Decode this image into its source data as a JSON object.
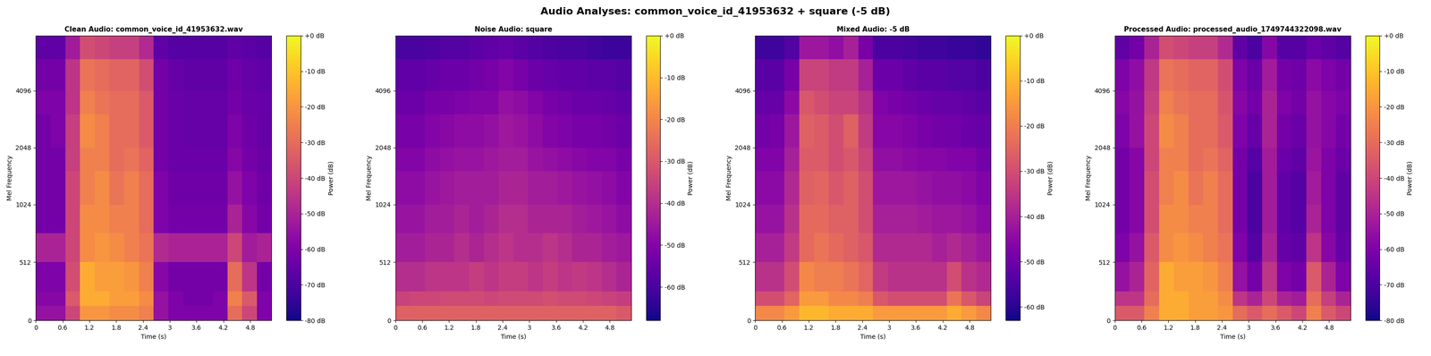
{
  "title": "Audio Analyses: common_voice_id_41953632 + square (-5 dB)",
  "chart_data": [
    {
      "type": "heatmap",
      "title": "Clean Audio: common_voice_id_41953632.wav",
      "x_label": "Time (s)",
      "y_label": "Mel Frequency",
      "xlim": [
        0,
        5.28
      ],
      "xticks": [
        0,
        0.6,
        1.2,
        1.8,
        2.4,
        3,
        3.6,
        4.2,
        4.8
      ],
      "ylim": [
        0,
        8000
      ],
      "yticks": [
        0,
        512,
        1024,
        2048,
        4096
      ],
      "x_edges": [
        0,
        0.33,
        0.66,
        0.99,
        1.32,
        1.65,
        1.98,
        2.31,
        2.64,
        2.97,
        3.3,
        3.63,
        3.96,
        4.29,
        4.62,
        4.95,
        5.28
      ],
      "y_edges": [
        0,
        128,
        256,
        512,
        768,
        1024,
        1536,
        2048,
        3072,
        4096,
        6000,
        8000
      ],
      "cells": [
        [
          -55,
          -55,
          -40,
          -20,
          -20,
          -22,
          -22,
          -25,
          -55,
          -60,
          -60,
          -60,
          -60,
          -30,
          -40,
          -60
        ],
        [
          -58,
          -58,
          -35,
          -15,
          -15,
          -18,
          -18,
          -22,
          -55,
          -60,
          -62,
          -62,
          -60,
          -25,
          -35,
          -60
        ],
        [
          -60,
          -60,
          -38,
          -15,
          -18,
          -18,
          -20,
          -25,
          -58,
          -62,
          -62,
          -62,
          -62,
          -30,
          -45,
          -62
        ],
        [
          -50,
          -50,
          -40,
          -22,
          -20,
          -22,
          -25,
          -28,
          -48,
          -50,
          -50,
          -50,
          -50,
          -40,
          -52,
          -50
        ],
        [
          -62,
          -62,
          -40,
          -22,
          -22,
          -25,
          -25,
          -30,
          -60,
          -62,
          -62,
          -62,
          -62,
          -50,
          -58,
          -62
        ],
        [
          -62,
          -62,
          -40,
          -25,
          -22,
          -28,
          -25,
          -30,
          -60,
          -63,
          -63,
          -63,
          -63,
          -55,
          -60,
          -63
        ],
        [
          -62,
          -62,
          -42,
          -25,
          -25,
          -30,
          -28,
          -32,
          -62,
          -64,
          -64,
          -64,
          -64,
          -58,
          -62,
          -64
        ],
        [
          -62,
          -60,
          -42,
          -22,
          -25,
          -30,
          -30,
          -35,
          -62,
          -64,
          -65,
          -65,
          -65,
          -60,
          -63,
          -65
        ],
        [
          -60,
          -60,
          -45,
          -25,
          -28,
          -30,
          -30,
          -35,
          -62,
          -64,
          -65,
          -65,
          -65,
          -62,
          -64,
          -65
        ],
        [
          -62,
          -62,
          -45,
          -28,
          -30,
          -32,
          -32,
          -38,
          -62,
          -65,
          -66,
          -66,
          -66,
          -63,
          -65,
          -66
        ],
        [
          -66,
          -66,
          -52,
          -38,
          -40,
          -42,
          -42,
          -48,
          -66,
          -68,
          -68,
          -68,
          -68,
          -66,
          -67,
          -68
        ]
      ],
      "colorbar_label": "Power (dB)",
      "colorbar_range": [
        -80,
        0
      ],
      "colorbar_ticks": [
        {
          "value": -80,
          "label": "-80 dB"
        },
        {
          "value": -70,
          "label": "-70 dB"
        },
        {
          "value": -60,
          "label": "-60 dB"
        },
        {
          "value": -50,
          "label": "-50 dB"
        },
        {
          "value": -40,
          "label": "-40 dB"
        },
        {
          "value": -30,
          "label": "-30 dB"
        },
        {
          "value": -20,
          "label": "-20 dB"
        },
        {
          "value": -10,
          "label": "-10 dB"
        },
        {
          "value": 0,
          "label": "+0 dB"
        }
      ]
    },
    {
      "type": "heatmap",
      "title": "Noise Audio: square",
      "x_label": "Time (s)",
      "y_label": "Mel Frequency",
      "xlim": [
        0,
        5.28
      ],
      "xticks": [
        0,
        0.6,
        1.2,
        1.8,
        2.4,
        3,
        3.6,
        4.2,
        4.8
      ],
      "ylim": [
        0,
        8000
      ],
      "yticks": [
        0,
        512,
        1024,
        2048,
        4096
      ],
      "x_edges": [
        0,
        0.33,
        0.66,
        0.99,
        1.32,
        1.65,
        1.98,
        2.31,
        2.64,
        2.97,
        3.3,
        3.63,
        3.96,
        4.29,
        4.62,
        4.95,
        5.28
      ],
      "y_edges": [
        0,
        128,
        256,
        512,
        768,
        1024,
        1536,
        2048,
        3072,
        4096,
        6000,
        8000
      ],
      "cells": [
        [
          -28,
          -28,
          -28,
          -28,
          -28,
          -28,
          -28,
          -28,
          -28,
          -28,
          -28,
          -28,
          -28,
          -28,
          -28,
          -30
        ],
        [
          -35,
          -34,
          -34,
          -33,
          -33,
          -33,
          -34,
          -33,
          -33,
          -33,
          -32,
          -33,
          -33,
          -34,
          -35,
          -36
        ],
        [
          -40,
          -40,
          -38,
          -38,
          -38,
          -36,
          -38,
          -36,
          -36,
          -38,
          -36,
          -38,
          -37,
          -38,
          -40,
          -42
        ],
        [
          -44,
          -44,
          -42,
          -42,
          -40,
          -42,
          -40,
          -38,
          -40,
          -40,
          -38,
          -40,
          -42,
          -42,
          -44,
          -45
        ],
        [
          -46,
          -46,
          -44,
          -44,
          -42,
          -44,
          -42,
          -40,
          -40,
          -42,
          -42,
          -42,
          -44,
          -45,
          -46,
          -48
        ],
        [
          -48,
          -48,
          -46,
          -45,
          -44,
          -44,
          -44,
          -42,
          -42,
          -44,
          -44,
          -45,
          -46,
          -47,
          -48,
          -50
        ],
        [
          -50,
          -50,
          -48,
          -47,
          -46,
          -46,
          -45,
          -44,
          -44,
          -46,
          -47,
          -48,
          -49,
          -50,
          -50,
          -52
        ],
        [
          -52,
          -52,
          -50,
          -49,
          -48,
          -48,
          -47,
          -45,
          -46,
          -48,
          -50,
          -51,
          -52,
          -52,
          -53,
          -54
        ],
        [
          -54,
          -54,
          -52,
          -52,
          -51,
          -50,
          -50,
          -47,
          -48,
          -50,
          -52,
          -53,
          -54,
          -54,
          -55,
          -56
        ],
        [
          -56,
          -56,
          -55,
          -54,
          -54,
          -53,
          -52,
          -50,
          -52,
          -54,
          -55,
          -56,
          -56,
          -57,
          -57,
          -58
        ],
        [
          -60,
          -60,
          -59,
          -58,
          -58,
          -57,
          -56,
          -55,
          -57,
          -58,
          -59,
          -60,
          -60,
          -61,
          -62,
          -62
        ]
      ],
      "colorbar_label": "Power (dB)",
      "colorbar_range": [
        -68,
        0
      ],
      "colorbar_ticks": [
        {
          "value": -60,
          "label": "-60 dB"
        },
        {
          "value": -50,
          "label": "-50 dB"
        },
        {
          "value": -40,
          "label": "-40 dB"
        },
        {
          "value": -30,
          "label": "-30 dB"
        },
        {
          "value": -20,
          "label": "-20 dB"
        },
        {
          "value": -10,
          "label": "-10 dB"
        },
        {
          "value": 0,
          "label": "+0 dB"
        }
      ]
    },
    {
      "type": "heatmap",
      "title": "Mixed Audio: -5 dB",
      "x_label": "Time (s)",
      "y_label": "Mel Frequency",
      "xlim": [
        0,
        5.28
      ],
      "xticks": [
        0,
        0.6,
        1.2,
        1.8,
        2.4,
        3,
        3.6,
        4.2,
        4.8
      ],
      "ylim": [
        0,
        8000
      ],
      "yticks": [
        0,
        512,
        1024,
        2048,
        4096
      ],
      "x_edges": [
        0,
        0.33,
        0.66,
        0.99,
        1.32,
        1.65,
        1.98,
        2.31,
        2.64,
        2.97,
        3.3,
        3.63,
        3.96,
        4.29,
        4.62,
        4.95,
        5.28
      ],
      "y_edges": [
        0,
        128,
        256,
        512,
        768,
        1024,
        1536,
        2048,
        3072,
        4096,
        6000,
        8000
      ],
      "cells": [
        [
          -18,
          -18,
          -15,
          -10,
          -10,
          -12,
          -12,
          -12,
          -15,
          -15,
          -15,
          -15,
          -15,
          -12,
          -15,
          -18
        ],
        [
          -30,
          -30,
          -25,
          -15,
          -15,
          -18,
          -18,
          -20,
          -28,
          -30,
          -30,
          -30,
          -30,
          -22,
          -28,
          -32
        ],
        [
          -36,
          -36,
          -30,
          -18,
          -20,
          -20,
          -22,
          -25,
          -34,
          -36,
          -36,
          -36,
          -36,
          -30,
          -36,
          -38
        ],
        [
          -40,
          -40,
          -34,
          -24,
          -22,
          -24,
          -26,
          -28,
          -38,
          -38,
          -38,
          -38,
          -40,
          -38,
          -40,
          -42
        ],
        [
          -43,
          -43,
          -36,
          -24,
          -24,
          -26,
          -26,
          -30,
          -40,
          -40,
          -40,
          -41,
          -42,
          -42,
          -43,
          -45
        ],
        [
          -45,
          -45,
          -38,
          -26,
          -25,
          -28,
          -26,
          -30,
          -42,
          -42,
          -42,
          -43,
          -44,
          -44,
          -45,
          -47
        ],
        [
          -47,
          -47,
          -40,
          -27,
          -27,
          -30,
          -28,
          -32,
          -44,
          -44,
          -45,
          -46,
          -46,
          -47,
          -47,
          -49
        ],
        [
          -49,
          -48,
          -42,
          -26,
          -27,
          -30,
          -26,
          -34,
          -46,
          -46,
          -47,
          -48,
          -49,
          -49,
          -50,
          -51
        ],
        [
          -51,
          -51,
          -45,
          -28,
          -30,
          -32,
          -32,
          -36,
          -47,
          -48,
          -49,
          -50,
          -51,
          -51,
          -52,
          -53
        ],
        [
          -53,
          -53,
          -48,
          -32,
          -32,
          -34,
          -34,
          -40,
          -50,
          -50,
          -52,
          -53,
          -53,
          -54,
          -54,
          -55
        ],
        [
          -57,
          -57,
          -54,
          -42,
          -42,
          -44,
          -40,
          -48,
          -55,
          -55,
          -56,
          -57,
          -57,
          -58,
          -58,
          -59
        ]
      ],
      "colorbar_label": "Power (dB)",
      "colorbar_range": [
        -63,
        0
      ],
      "colorbar_ticks": [
        {
          "value": -60,
          "label": "-60 dB"
        },
        {
          "value": -50,
          "label": "-50 dB"
        },
        {
          "value": -40,
          "label": "-40 dB"
        },
        {
          "value": -30,
          "label": "-30 dB"
        },
        {
          "value": -20,
          "label": "-20 dB"
        },
        {
          "value": -10,
          "label": "-10 dB"
        },
        {
          "value": 0,
          "label": "+0 dB"
        }
      ]
    },
    {
      "type": "heatmap",
      "title": "Processed Audio: processed_audio_1749744322098.wav",
      "x_label": "Time (s)",
      "y_label": "Mel Frequency",
      "xlim": [
        0,
        5.28
      ],
      "xticks": [
        0,
        0.6,
        1.2,
        1.8,
        2.4,
        3,
        3.6,
        4.2,
        4.8
      ],
      "ylim": [
        0,
        8000
      ],
      "yticks": [
        0,
        512,
        1024,
        2048,
        4096
      ],
      "x_edges": [
        0,
        0.33,
        0.66,
        0.99,
        1.32,
        1.65,
        1.98,
        2.31,
        2.64,
        2.97,
        3.3,
        3.63,
        3.96,
        4.29,
        4.62,
        4.95,
        5.28
      ],
      "y_edges": [
        0,
        128,
        256,
        512,
        768,
        1024,
        1536,
        2048,
        3072,
        4096,
        6000,
        8000
      ],
      "cells": [
        [
          -35,
          -35,
          -25,
          -15,
          -15,
          -18,
          -18,
          -20,
          -30,
          -35,
          -30,
          -35,
          -40,
          -25,
          -35,
          -40
        ],
        [
          -45,
          -45,
          -30,
          -15,
          -15,
          -18,
          -18,
          -22,
          -45,
          -50,
          -40,
          -50,
          -52,
          -30,
          -42,
          -50
        ],
        [
          -55,
          -50,
          -32,
          -15,
          -18,
          -18,
          -20,
          -25,
          -55,
          -62,
          -45,
          -60,
          -62,
          -35,
          -50,
          -60
        ],
        [
          -60,
          -55,
          -35,
          -22,
          -20,
          -22,
          -25,
          -28,
          -60,
          -68,
          -50,
          -65,
          -66,
          -45,
          -58,
          -65
        ],
        [
          -62,
          -58,
          -38,
          -22,
          -22,
          -25,
          -25,
          -30,
          -62,
          -70,
          -52,
          -66,
          -68,
          -50,
          -60,
          -66
        ],
        [
          -62,
          -58,
          -38,
          -25,
          -22,
          -28,
          -25,
          -30,
          -62,
          -70,
          -52,
          -66,
          -68,
          -52,
          -60,
          -66
        ],
        [
          -62,
          -58,
          -40,
          -25,
          -25,
          -30,
          -28,
          -32,
          -62,
          -68,
          -52,
          -64,
          -66,
          -54,
          -60,
          -64
        ],
        [
          -60,
          -55,
          -40,
          -22,
          -25,
          -30,
          -30,
          -35,
          -60,
          -65,
          -50,
          -62,
          -64,
          -55,
          -58,
          -62
        ],
        [
          -58,
          -55,
          -42,
          -25,
          -28,
          -30,
          -30,
          -36,
          -58,
          -62,
          -50,
          -60,
          -62,
          -55,
          -58,
          -60
        ],
        [
          -60,
          -56,
          -44,
          -28,
          -30,
          -32,
          -32,
          -38,
          -60,
          -64,
          -52,
          -62,
          -63,
          -57,
          -60,
          -62
        ],
        [
          -66,
          -62,
          -50,
          -38,
          -40,
          -42,
          -42,
          -48,
          -66,
          -70,
          -58,
          -68,
          -68,
          -64,
          -66,
          -68
        ]
      ],
      "colorbar_label": "Power (dB)",
      "colorbar_range": [
        -80,
        0
      ],
      "colorbar_ticks": [
        {
          "value": -80,
          "label": "-80 dB"
        },
        {
          "value": -70,
          "label": "-70 dB"
        },
        {
          "value": -60,
          "label": "-60 dB"
        },
        {
          "value": -50,
          "label": "-50 dB"
        },
        {
          "value": -40,
          "label": "-40 dB"
        },
        {
          "value": -30,
          "label": "-30 dB"
        },
        {
          "value": -20,
          "label": "-20 dB"
        },
        {
          "value": -10,
          "label": "-10 dB"
        },
        {
          "value": 0,
          "label": "+0 dB"
        }
      ]
    }
  ]
}
